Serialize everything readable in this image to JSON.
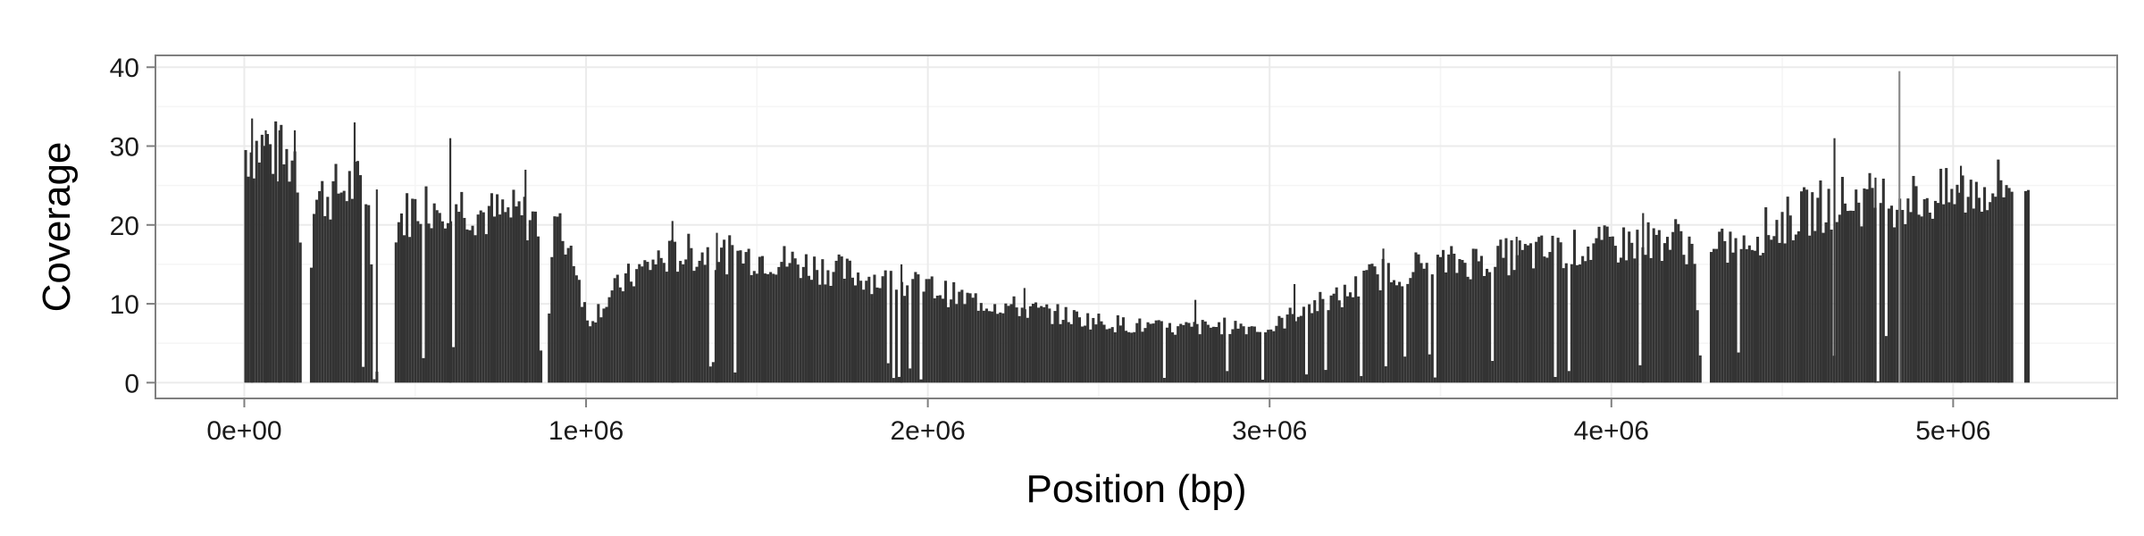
{
  "chart_data": {
    "type": "bar",
    "title": "",
    "xlabel": "Position (bp)",
    "ylabel": "Coverage",
    "xlim": [
      -260000,
      5480000
    ],
    "ylim": [
      -2,
      41.5
    ],
    "x_ticks": [
      0,
      1000000,
      2000000,
      3000000,
      4000000,
      5000000
    ],
    "x_tick_labels": [
      "0e+00",
      "1e+06",
      "2e+06",
      "3e+06",
      "4e+06",
      "5e+06"
    ],
    "y_ticks": [
      0,
      10,
      20,
      30,
      40
    ],
    "y_tick_labels": [
      "0",
      "10",
      "20",
      "30",
      "40"
    ],
    "grid": true,
    "bar_width": 8000,
    "colors": {
      "bar": "#333333",
      "panel_border": "#7f7f7f",
      "grid_major": "#ebebeb",
      "grid_minor": "#f5f5f5",
      "tick": "#7f7f7f"
    },
    "coverage_profile": [
      [
        0,
        30.5
      ],
      [
        60000,
        31
      ],
      [
        120000,
        29
      ],
      [
        150000,
        30
      ],
      [
        175000,
        3
      ],
      [
        200000,
        24
      ],
      [
        260000,
        25
      ],
      [
        320000,
        26
      ],
      [
        360000,
        24
      ],
      [
        380000,
        0
      ],
      [
        440000,
        21
      ],
      [
        500000,
        23
      ],
      [
        600000,
        24
      ],
      [
        700000,
        22
      ],
      [
        800000,
        22
      ],
      [
        860000,
        21
      ],
      [
        880000,
        1
      ],
      [
        900000,
        21
      ],
      [
        960000,
        17
      ],
      [
        1000000,
        8
      ],
      [
        1100000,
        13
      ],
      [
        1200000,
        16
      ],
      [
        1300000,
        17
      ],
      [
        1500000,
        16.5
      ],
      [
        1700000,
        15
      ],
      [
        1900000,
        13
      ],
      [
        2000000,
        12.5
      ],
      [
        2100000,
        11
      ],
      [
        2300000,
        9.5
      ],
      [
        2500000,
        8
      ],
      [
        2700000,
        7
      ],
      [
        2900000,
        7.5
      ],
      [
        3000000,
        7
      ],
      [
        3100000,
        10
      ],
      [
        3200000,
        11
      ],
      [
        3300000,
        14
      ],
      [
        3400000,
        15
      ],
      [
        3600000,
        16
      ],
      [
        3800000,
        17
      ],
      [
        4000000,
        18
      ],
      [
        4200000,
        19
      ],
      [
        4240000,
        17
      ],
      [
        4260000,
        0
      ],
      [
        4290000,
        17
      ],
      [
        4400000,
        19
      ],
      [
        4500000,
        21
      ],
      [
        4600000,
        23
      ],
      [
        4700000,
        24
      ],
      [
        4800000,
        24
      ],
      [
        4900000,
        24
      ],
      [
        5000000,
        24.5
      ],
      [
        5100000,
        25.5
      ],
      [
        5170000,
        26
      ],
      [
        5200000,
        27
      ]
    ],
    "gaps": [
      [
        165000,
        190000
      ],
      [
        385000,
        435000
      ],
      [
        870000,
        885000
      ],
      [
        4262000,
        4282000
      ],
      [
        5175000,
        5200000
      ]
    ],
    "spikes": [
      [
        20000,
        33.5
      ],
      [
        60000,
        32
      ],
      [
        100000,
        32
      ],
      [
        145000,
        32
      ],
      [
        320000,
        33
      ],
      [
        385000,
        24.5
      ],
      [
        600000,
        31
      ],
      [
        820000,
        27
      ],
      [
        1250000,
        20.5
      ],
      [
        1380000,
        19
      ],
      [
        1920000,
        15
      ],
      [
        2280000,
        12
      ],
      [
        2780000,
        10.5
      ],
      [
        3070000,
        12.5
      ],
      [
        3330000,
        17
      ],
      [
        3720000,
        18.5
      ],
      [
        4090000,
        21.5
      ],
      [
        4650000,
        31
      ],
      [
        4770000,
        26
      ],
      [
        4840000,
        39.5
      ],
      [
        5020000,
        27.5
      ],
      [
        5130000,
        28
      ]
    ]
  }
}
